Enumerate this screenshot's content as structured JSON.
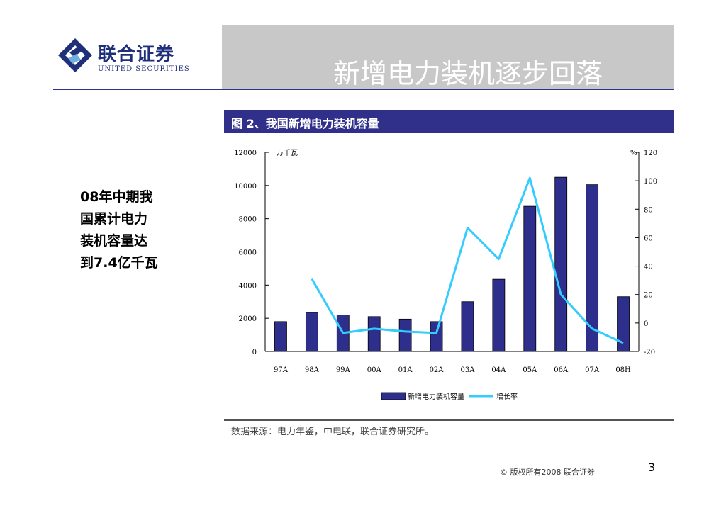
{
  "header": {
    "logo_cn": "联合证券",
    "logo_en": "UNITED SECURITIES",
    "title": "新增电力装机逐步回落"
  },
  "figure_title": "图 2、我国新增电力装机容量",
  "side_note": [
    "08年中期我",
    "国累计电力",
    "装机容量达",
    "到7.4亿千瓦"
  ],
  "source": "数据来源：电力年鉴，中电联，联合证券研究所。",
  "footer": {
    "copyright": "© 版权所有2008  联合证券",
    "page": "3"
  },
  "colors": {
    "bar": "#2e2e8c",
    "line": "#33ccff",
    "header": "#30308a",
    "title_box": "#c8c8c8"
  },
  "chart_data": {
    "type": "bar",
    "categories": [
      "97A",
      "98A",
      "99A",
      "00A",
      "01A",
      "02A",
      "03A",
      "04A",
      "05A",
      "06A",
      "07A",
      "08H"
    ],
    "series": [
      {
        "name": "新增电力装机容量",
        "type": "bar",
        "axis": "left",
        "values": [
          1800,
          2350,
          2200,
          2100,
          1950,
          1800,
          3000,
          4350,
          8750,
          10500,
          10050,
          3300
        ]
      },
      {
        "name": "增长率",
        "type": "line",
        "axis": "right",
        "values": [
          null,
          31,
          -7,
          -4,
          -6,
          -7,
          67,
          45,
          102,
          20,
          -4,
          -14
        ]
      }
    ],
    "ylabel_left": "万千瓦",
    "ylabel_right": "%",
    "ylim_left": [
      0,
      12000
    ],
    "ylim_right": [
      -20,
      120
    ],
    "yticks_left": [
      "0",
      "2000",
      "4000",
      "6000",
      "8000",
      "10000",
      "12000"
    ],
    "yticks_right": [
      "-20",
      "0",
      "20",
      "40",
      "60",
      "80",
      "100",
      "120"
    ],
    "legend_position": "bottom"
  }
}
